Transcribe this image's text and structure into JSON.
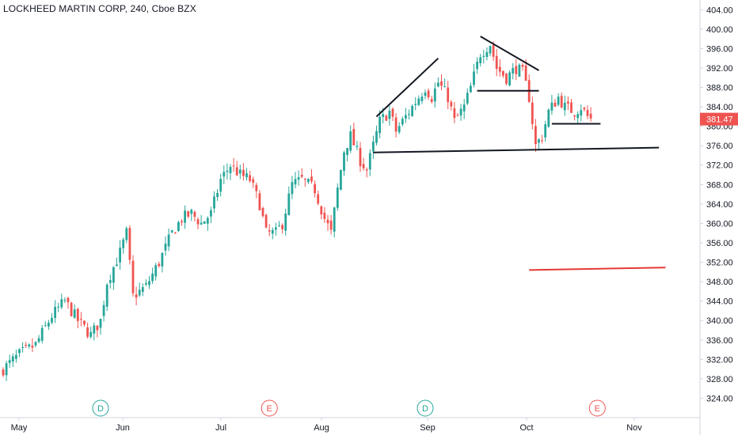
{
  "header": {
    "title": "LOCKHEED MARTIN CORP, 240, Cboe BZX"
  },
  "colors": {
    "up": "#26a69a",
    "down": "#ef5350",
    "line": "#131722",
    "red_line": "#e53935",
    "price_tag": "#ef5350",
    "axis_text": "#131722",
    "marker_d": "#26a69a",
    "marker_e": "#ef5350",
    "grid_border": "#d1d4dc"
  },
  "chart_data": {
    "type": "candlestick",
    "ylim": [
      320,
      406
    ],
    "y_ticks": [
      324,
      328,
      332,
      336,
      340,
      344,
      348,
      352,
      356,
      360,
      364,
      368,
      372,
      376,
      380,
      384,
      388,
      392,
      396,
      400,
      404
    ],
    "y_tick_labels": [
      "324.00",
      "328.00",
      "332.00",
      "336.00",
      "340.00",
      "344.00",
      "348.00",
      "352.00",
      "356.00",
      "360.00",
      "364.00",
      "368.00",
      "372.00",
      "376.00",
      "380.00",
      "384.00",
      "388.00",
      "392.00",
      "396.00",
      "400.00",
      "404.00"
    ],
    "x_labels": [
      "May",
      "Jun",
      "Jul",
      "Aug",
      "Sep",
      "Oct",
      "Nov"
    ],
    "last_price": 381.47,
    "last_price_label": "381.47",
    "event_markers": [
      {
        "label": "D",
        "kind": "dividend",
        "index": 30
      },
      {
        "label": "E",
        "kind": "earnings",
        "index": 82
      },
      {
        "label": "D",
        "kind": "dividend",
        "index": 130
      },
      {
        "label": "E",
        "kind": "earnings",
        "index": 183
      }
    ],
    "price_points": [
      [
        0,
        330
      ],
      [
        5,
        333
      ],
      [
        10,
        335
      ],
      [
        15,
        341
      ],
      [
        19,
        344
      ],
      [
        23,
        340
      ],
      [
        27,
        337
      ],
      [
        30,
        340
      ],
      [
        32,
        348
      ],
      [
        36,
        354
      ],
      [
        38,
        358
      ],
      [
        40,
        345
      ],
      [
        44,
        347
      ],
      [
        48,
        352
      ],
      [
        52,
        358
      ],
      [
        55,
        361
      ],
      [
        58,
        362
      ],
      [
        61,
        360
      ],
      [
        64,
        362
      ],
      [
        67,
        369
      ],
      [
        70,
        372
      ],
      [
        73,
        370
      ],
      [
        76,
        369
      ],
      [
        79,
        364
      ],
      [
        81,
        358
      ],
      [
        84,
        358
      ],
      [
        86,
        360
      ],
      [
        89,
        368
      ],
      [
        92,
        369
      ],
      [
        96,
        367
      ],
      [
        99,
        361
      ],
      [
        101,
        358
      ],
      [
        103,
        367
      ],
      [
        105,
        375
      ],
      [
        107,
        378
      ],
      [
        110,
        373
      ],
      [
        112,
        371
      ],
      [
        114,
        376
      ],
      [
        116,
        381
      ],
      [
        119,
        383
      ],
      [
        121,
        379
      ],
      [
        123,
        381
      ],
      [
        126,
        384
      ],
      [
        128,
        386
      ],
      [
        130,
        388
      ],
      [
        132,
        386
      ],
      [
        134,
        389
      ],
      [
        137,
        386
      ],
      [
        139,
        381
      ],
      [
        142,
        384
      ],
      [
        144,
        388
      ],
      [
        147,
        395
      ],
      [
        150,
        397
      ],
      [
        152,
        392
      ],
      [
        155,
        390
      ],
      [
        158,
        392
      ],
      [
        160,
        391
      ],
      [
        162,
        386
      ],
      [
        164,
        376
      ],
      [
        166,
        378
      ],
      [
        168,
        383
      ],
      [
        171,
        386
      ],
      [
        173,
        384
      ],
      [
        176,
        383
      ],
      [
        178,
        384
      ],
      [
        180,
        382
      ],
      [
        181,
        381.47
      ]
    ],
    "trendlines": [
      {
        "from": [
          115,
          382
        ],
        "to": [
          134,
          394
        ],
        "color": "line"
      },
      {
        "from": [
          147,
          398.5
        ],
        "to": [
          165,
          391.5
        ],
        "color": "line"
      },
      {
        "from": [
          146,
          387.3
        ],
        "to": [
          165,
          387.3
        ],
        "color": "line"
      },
      {
        "from": [
          169,
          380.5
        ],
        "to": [
          184,
          380.5
        ],
        "color": "line"
      },
      {
        "from": [
          114,
          374.6
        ],
        "to": [
          202,
          375.6
        ],
        "color": "line"
      },
      {
        "from": [
          162,
          350.4
        ],
        "to": [
          204,
          350.9
        ],
        "color": "red_line"
      }
    ]
  }
}
